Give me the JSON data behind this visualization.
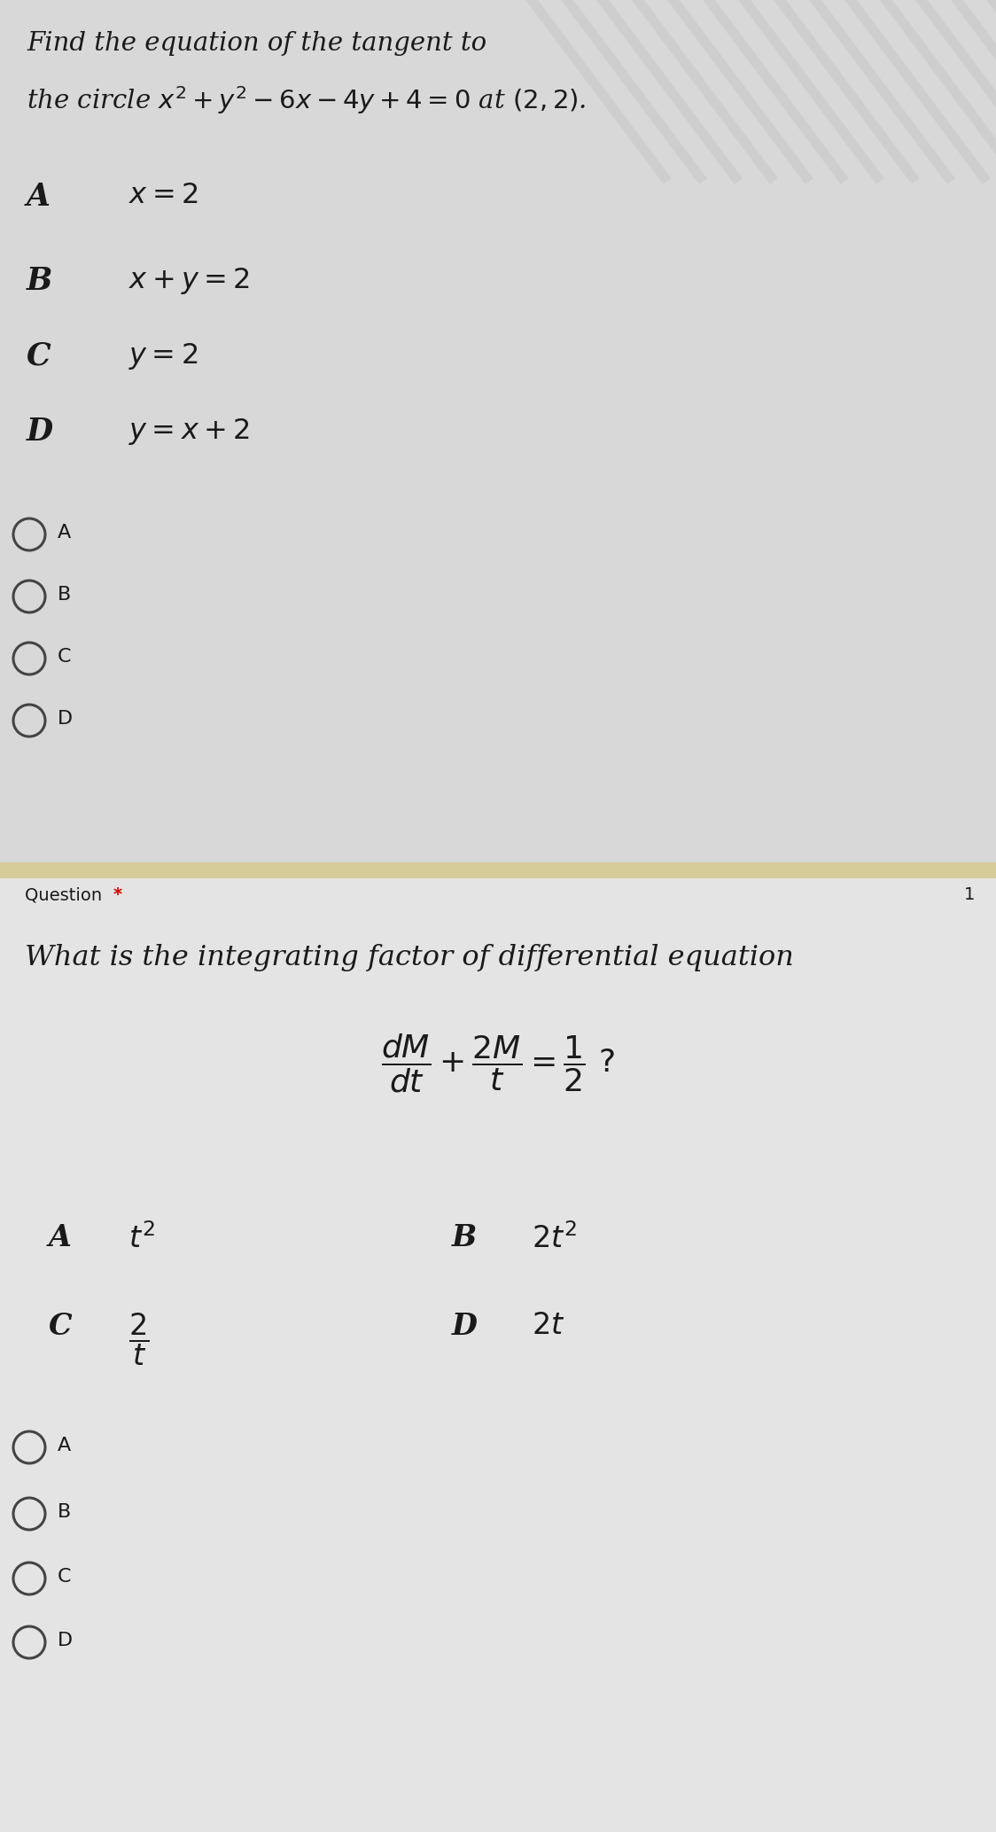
{
  "bg_color_top": "#d8d8d8",
  "bg_color_bottom": "#e4e4e4",
  "divider_color": "#d6cc9a",
  "text_color": "#1a1a1a",
  "circle_color": "#444444",
  "question_label_color": "#cc0000",
  "q1_title_line1": "Find the equation of the tangent to",
  "q1_title_line2": "the circle $x^2 + y^2 - 6x - 4y + 4 = 0$ at $(2,2)$.",
  "q1_options": [
    [
      "A",
      "$x = 2$"
    ],
    [
      "B",
      "$x + y = 2$"
    ],
    [
      "C",
      "$y = 2$"
    ],
    [
      "D",
      "$y = x + 2$"
    ]
  ],
  "q1_radio_labels": [
    "A",
    "B",
    "C",
    "D"
  ],
  "q2_title": "What is the integrating factor of differential equation",
  "q2_options_row1": [
    [
      "A",
      "$t^2$"
    ],
    [
      "B",
      "$2t^2$"
    ]
  ],
  "q2_options_row2": [
    [
      "C",
      "$\\dfrac{2}{t}$"
    ],
    [
      "D",
      "$2t$"
    ]
  ],
  "q2_radio_labels": [
    "A",
    "B",
    "C",
    "D"
  ],
  "stripe_color": "#c8c8c8"
}
